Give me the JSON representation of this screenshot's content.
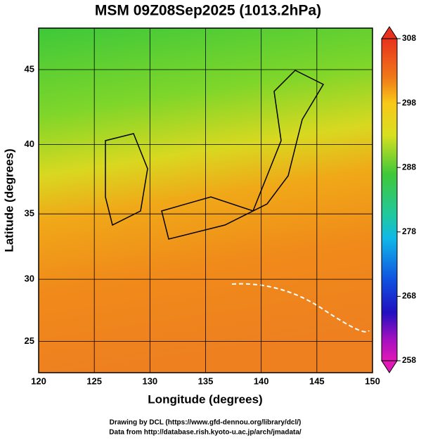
{
  "map": {
    "title": "MSM 09Z08Sep2025 (1013.2hPa)",
    "x_label": "Longitude (degrees)",
    "y_label": "Latitude  (degrees)",
    "lon_range": [
      120,
      150
    ],
    "lat_range": [
      22.4,
      47.6
    ],
    "lon_ticks": [
      120,
      125,
      130,
      135,
      140,
      145,
      150
    ],
    "lat_ticks": [
      25,
      30,
      35,
      40,
      45
    ],
    "colorbar": {
      "range": [
        258,
        308
      ],
      "ticks": [
        258,
        268,
        278,
        288,
        298,
        308
      ]
    },
    "credits": [
      "Drawing by DCL (https://www.gfd-dennou.org/library/dcl/)",
      "Data from http://database.rish.kyoto-u.ac.jp/arch/jmadata/"
    ]
  }
}
